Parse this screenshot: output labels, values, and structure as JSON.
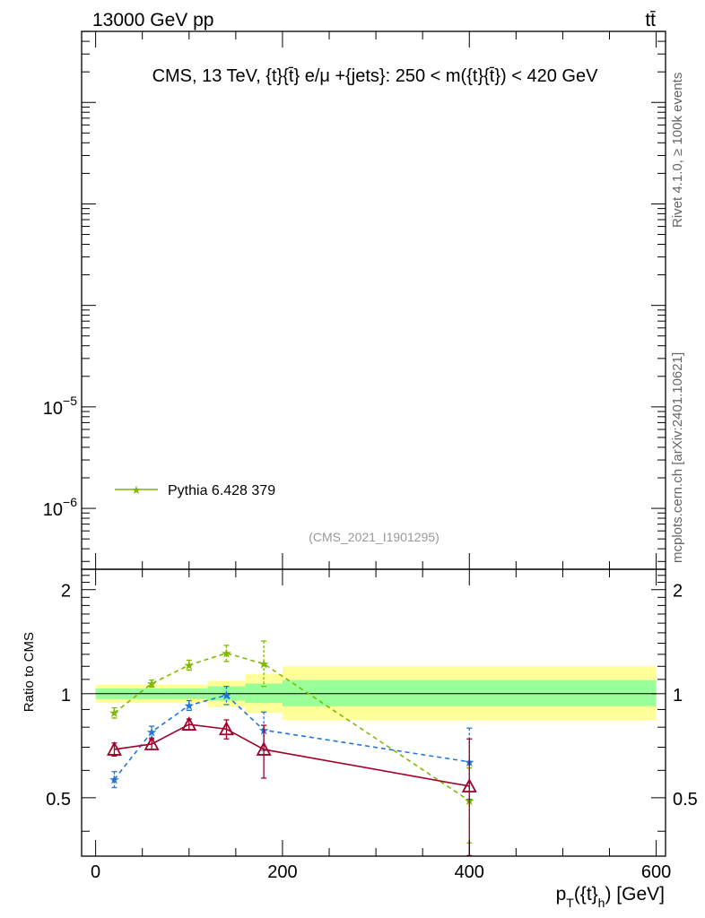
{
  "header": {
    "energy_label": "13000 GeV pp",
    "process_label": "tt̄"
  },
  "side_labels": {
    "rivet": "Rivet 4.1.0, ≥ 100k events",
    "mcplots": "mcplots.cern.ch [arXiv:2401.10621]"
  },
  "chart_data": {
    "type": "line",
    "title": "CMS, 13 TeV, {t}{t̄} e/μ +{jets}: 250 < m({t}{t̄}) < 420 GeV",
    "analysis_id": "(CMS_2021_I1901295)",
    "xlabel": "p_T({t}_h) [GeV]",
    "xlabel_parts": {
      "p": "p",
      "T": "T",
      "mid": "({t}",
      "h": "h",
      "end": ") [GeV]"
    },
    "ylabel_ratio": "Ratio to CMS",
    "xlim": [
      -15,
      610
    ],
    "main_ylim_log10": [
      -6.6,
      -1.3
    ],
    "main_yticks": [
      {
        "exp": -5,
        "base": "10",
        "sup": "−5"
      },
      {
        "exp": -6,
        "base": "10",
        "sup": "−6"
      }
    ],
    "ratio_ylim_log10": [
      -0.47,
      0.36
    ],
    "x_ticks": [
      0,
      200,
      400,
      600
    ],
    "ratio_ticks": [
      {
        "value": 0.5,
        "label": "0.5"
      },
      {
        "value": 1,
        "label": "1"
      },
      {
        "value": 2,
        "label": "2"
      }
    ],
    "legend": [
      {
        "name": "Pythia 6.428 379",
        "color": "#7fb800",
        "marker": "star"
      }
    ],
    "uncertainty_bins": [
      {
        "x0": 0,
        "x1": 40,
        "inner": [
          0.965,
          1.035
        ],
        "outer": [
          0.94,
          1.06
        ]
      },
      {
        "x0": 40,
        "x1": 80,
        "inner": [
          0.965,
          1.035
        ],
        "outer": [
          0.94,
          1.06
        ]
      },
      {
        "x0": 80,
        "x1": 120,
        "inner": [
          0.965,
          1.035
        ],
        "outer": [
          0.94,
          1.06
        ]
      },
      {
        "x0": 120,
        "x1": 160,
        "inner": [
          0.955,
          1.05
        ],
        "outer": [
          0.915,
          1.09
        ]
      },
      {
        "x0": 160,
        "x1": 200,
        "inner": [
          0.94,
          1.07
        ],
        "outer": [
          0.88,
          1.14
        ]
      },
      {
        "x0": 200,
        "x1": 600,
        "inner": [
          0.92,
          1.095
        ],
        "outer": [
          0.84,
          1.2
        ]
      }
    ],
    "series": [
      {
        "name": "Pythia 6.428 379",
        "color": "#7fb800",
        "marker": "star",
        "dashed": true,
        "x": [
          20,
          60,
          100,
          140,
          180,
          400
        ],
        "y": [
          0.88,
          1.07,
          1.21,
          1.31,
          1.22,
          0.49
        ],
        "err_low": [
          0.03,
          0.025,
          0.04,
          0.07,
          0.17,
          0.12
        ],
        "err_high": [
          0.03,
          0.025,
          0.04,
          0.07,
          0.2,
          0.12
        ]
      },
      {
        "name": "blue dashed",
        "color": "#1f78d6",
        "marker": "star",
        "dashed": true,
        "x": [
          20,
          60,
          100,
          140,
          180,
          400
        ],
        "y": [
          0.565,
          0.775,
          0.925,
          0.99,
          0.785,
          0.635
        ],
        "err_low": [
          0.03,
          0.03,
          0.03,
          0.06,
          0.1,
          0.14
        ],
        "err_high": [
          0.03,
          0.03,
          0.03,
          0.06,
          0.1,
          0.16
        ]
      },
      {
        "name": "red solid",
        "color": "#a0002a",
        "marker": "triangle",
        "dashed": false,
        "x": [
          20,
          60,
          100,
          140,
          180,
          400
        ],
        "y": [
          0.69,
          0.715,
          0.815,
          0.79,
          0.69,
          0.54
        ],
        "err_low": [
          0.03,
          0.025,
          0.03,
          0.05,
          0.12,
          0.2
        ],
        "err_high": [
          0.03,
          0.025,
          0.03,
          0.05,
          0.12,
          0.2
        ]
      }
    ]
  }
}
